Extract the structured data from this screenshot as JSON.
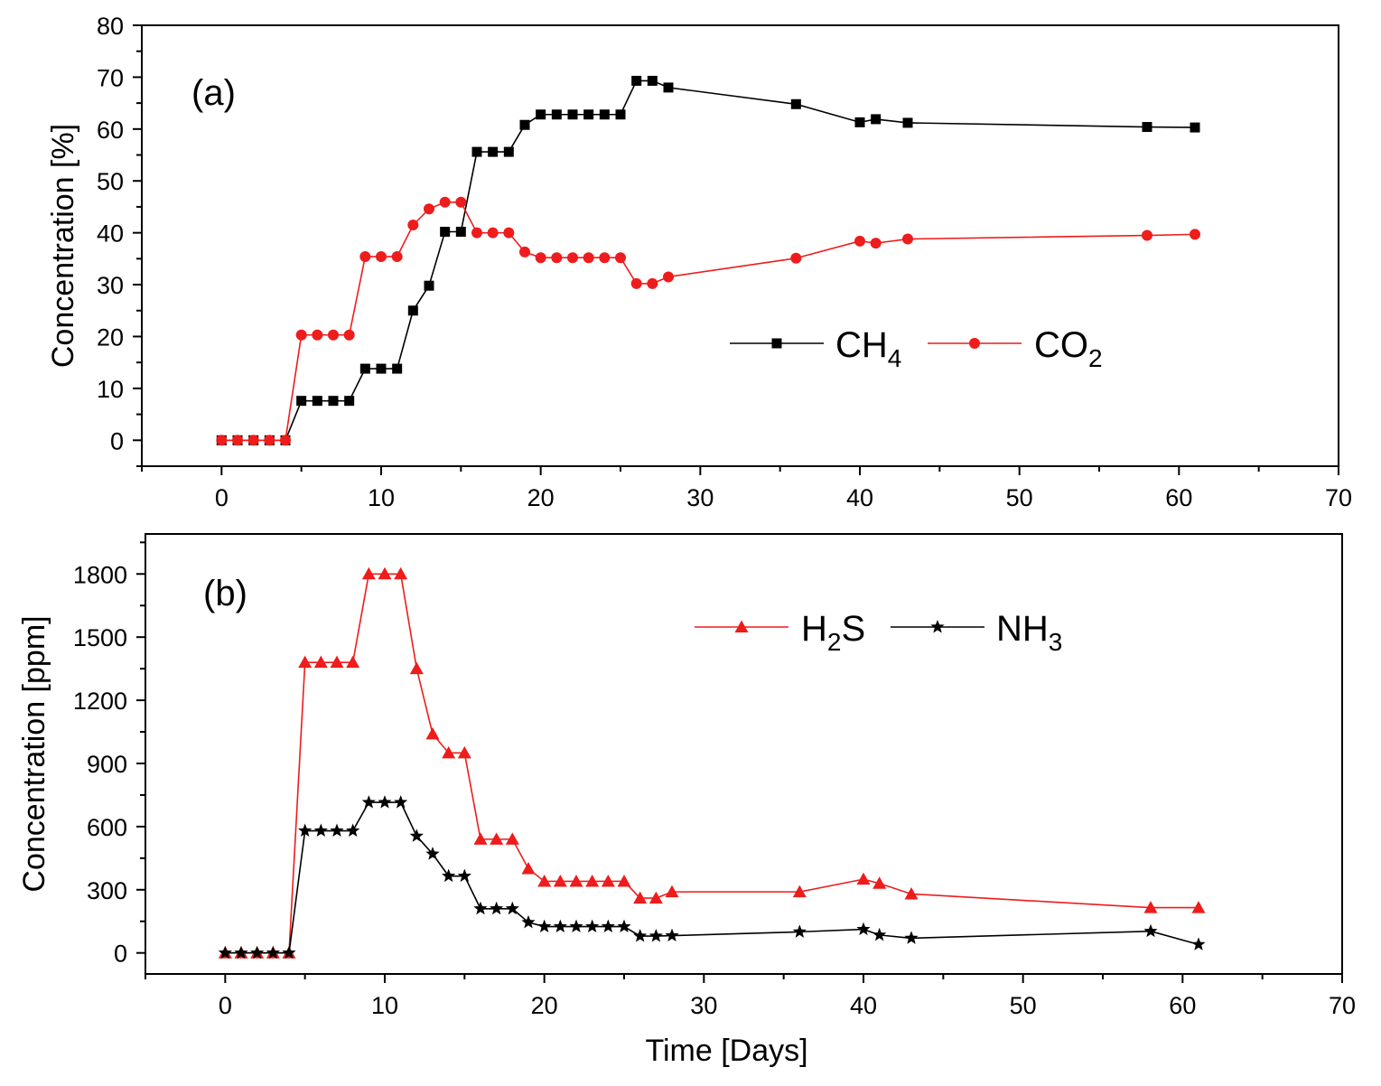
{
  "chart_data": [
    {
      "type": "line",
      "panel_label": "(a)",
      "ylabel": "Concentration [%]",
      "xlabel": "",
      "xlim": [
        -5,
        70
      ],
      "ylim": [
        -5,
        80
      ],
      "x_ticks": [
        0,
        10,
        20,
        30,
        40,
        50,
        60,
        70
      ],
      "y_ticks": [
        0,
        10,
        20,
        30,
        40,
        50,
        60,
        70,
        80
      ],
      "legend_position": "center-right",
      "series": [
        {
          "name": "CH",
          "name_sub": "4",
          "color": "#000000",
          "marker": "square",
          "x": [
            0,
            1,
            2,
            3,
            4,
            5,
            6,
            7,
            8,
            9,
            10,
            11,
            12,
            13,
            14,
            15,
            16,
            17,
            18,
            19,
            20,
            21,
            22,
            23,
            24,
            25,
            26,
            27,
            28,
            36,
            40,
            41,
            43,
            58,
            61
          ],
          "y": [
            0,
            0,
            0,
            0,
            0,
            7.6,
            7.6,
            7.6,
            7.6,
            13.8,
            13.8,
            13.8,
            25,
            29.8,
            40.2,
            40.2,
            55.6,
            55.6,
            55.6,
            60.8,
            62.8,
            62.8,
            62.8,
            62.8,
            62.8,
            62.8,
            69.3,
            69.3,
            68,
            64.8,
            61.3,
            61.9,
            61.2,
            60.4,
            60.3
          ]
        },
        {
          "name": "CO",
          "name_sub": "2",
          "color": "#ee1c1c",
          "marker": "circle",
          "x": [
            0,
            1,
            2,
            3,
            4,
            5,
            6,
            7,
            8,
            9,
            10,
            11,
            12,
            13,
            14,
            15,
            16,
            17,
            18,
            19,
            20,
            21,
            22,
            23,
            24,
            25,
            26,
            27,
            28,
            36,
            40,
            41,
            43,
            58,
            61
          ],
          "y": [
            0,
            0,
            0,
            0,
            0,
            20.3,
            20.3,
            20.3,
            20.3,
            35.4,
            35.4,
            35.4,
            41.5,
            44.6,
            45.9,
            45.9,
            40,
            40,
            40,
            36.3,
            35.2,
            35.2,
            35.2,
            35.2,
            35.2,
            35.2,
            30.2,
            30.2,
            31.5,
            35.1,
            38.4,
            38,
            38.8,
            39.5,
            39.7
          ]
        }
      ]
    },
    {
      "type": "line",
      "panel_label": "(b)",
      "ylabel": "Concentration [ppm]",
      "xlabel": "Time [Days]",
      "xlim": [
        -5,
        70
      ],
      "ylim": [
        -100,
        1990
      ],
      "x_ticks": [
        0,
        10,
        20,
        30,
        40,
        50,
        60,
        70
      ],
      "y_ticks": [
        0,
        300,
        600,
        900,
        1200,
        1500,
        1800
      ],
      "legend_position": "top-right",
      "series": [
        {
          "name": "H",
          "name_sub": "2",
          "name_suffix": "S",
          "color": "#ee1c1c",
          "marker": "triangle",
          "x": [
            0,
            1,
            2,
            3,
            4,
            5,
            6,
            7,
            8,
            9,
            10,
            11,
            12,
            13,
            14,
            15,
            16,
            17,
            18,
            19,
            20,
            21,
            22,
            23,
            24,
            25,
            26,
            27,
            28,
            36,
            40,
            41,
            43,
            58,
            61
          ],
          "y": [
            0,
            0,
            0,
            0,
            0,
            1380,
            1380,
            1380,
            1380,
            1800,
            1800,
            1800,
            1350,
            1040,
            950,
            950,
            540,
            540,
            540,
            400,
            340,
            340,
            340,
            340,
            340,
            340,
            260,
            260,
            290,
            290,
            350,
            330,
            280,
            215,
            215
          ]
        },
        {
          "name": "NH",
          "name_sub": "3",
          "color": "#000000",
          "marker": "star",
          "x": [
            0,
            1,
            2,
            3,
            4,
            5,
            6,
            7,
            8,
            9,
            10,
            11,
            12,
            13,
            14,
            15,
            16,
            17,
            18,
            19,
            20,
            21,
            22,
            23,
            24,
            25,
            26,
            27,
            28,
            36,
            40,
            41,
            43,
            58,
            61
          ],
          "y": [
            0,
            0,
            0,
            0,
            0,
            580,
            580,
            580,
            580,
            715,
            715,
            715,
            555,
            470,
            365,
            365,
            210,
            210,
            210,
            145,
            125,
            125,
            125,
            125,
            125,
            125,
            80,
            80,
            82,
            100,
            112,
            85,
            70,
            103,
            40
          ]
        }
      ]
    }
  ]
}
